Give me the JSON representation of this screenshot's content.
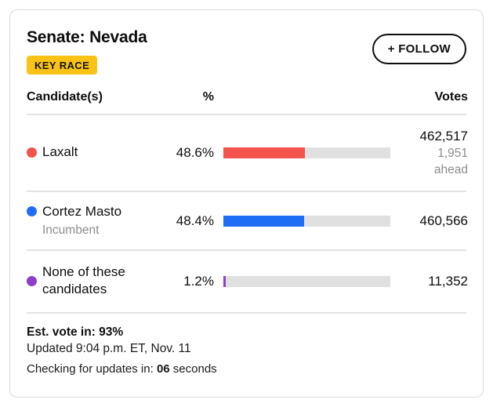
{
  "colors": {
    "badge_yellow": "#F9C216",
    "red": "#F4534D",
    "blue": "#1D6EF5",
    "purple": "#8C3FC8",
    "bar_track": "#E0E0E0",
    "gray_text": "#8C8C8C"
  },
  "header": {
    "title": "Senate: Nevada",
    "badge": "KEY RACE",
    "follow_button": "+ FOLLOW"
  },
  "table": {
    "headers": {
      "candidate": "Candidate(s)",
      "percent": "%",
      "votes": "Votes"
    },
    "rows": [
      {
        "name": "Laxalt",
        "subtitle": "",
        "percent_label": "48.6%",
        "percent_value": 48.6,
        "votes": "462,517",
        "lead_amount": "1,951",
        "lead_label": "ahead",
        "color": "#F4534D"
      },
      {
        "name": "Cortez Masto",
        "subtitle": "Incumbent",
        "percent_label": "48.4%",
        "percent_value": 48.4,
        "votes": "460,566",
        "lead_amount": "",
        "lead_label": "",
        "color": "#1D6EF5"
      },
      {
        "name": "None of these candidates",
        "subtitle": "",
        "percent_label": "1.2%",
        "percent_value": 1.2,
        "votes": "11,352",
        "lead_amount": "",
        "lead_label": "",
        "color": "#8C3FC8"
      }
    ]
  },
  "footer": {
    "est_vote_label": "Est. vote in:",
    "est_vote_value": "93%",
    "updated": "Updated 9:04 p.m. ET, Nov. 11",
    "checking_prefix": "Checking for updates in:",
    "checking_value": "06",
    "checking_suffix": "seconds"
  }
}
